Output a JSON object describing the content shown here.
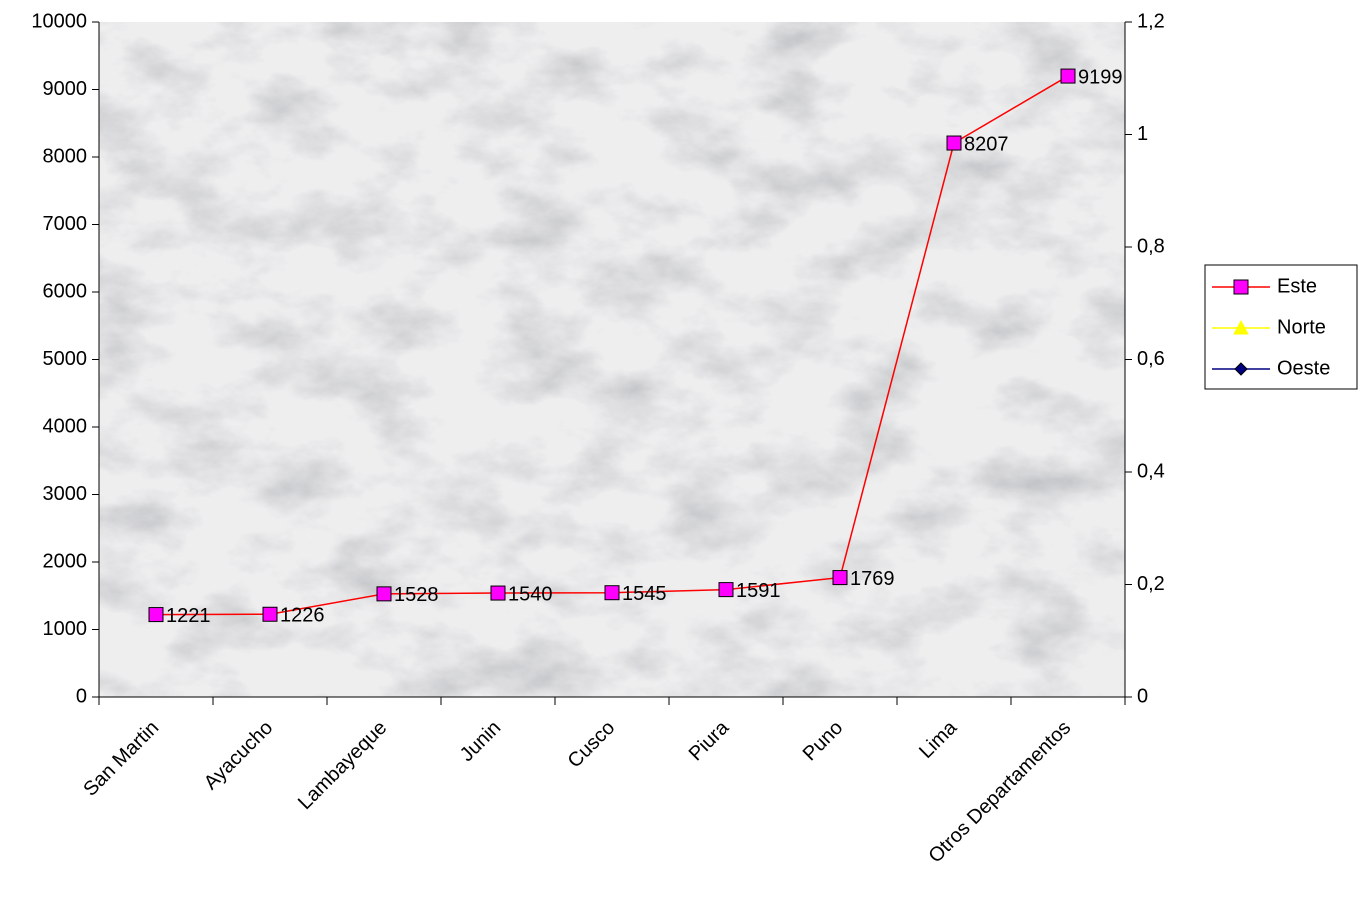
{
  "chart_data": {
    "type": "line",
    "categories": [
      "San Martin",
      "Ayacucho",
      "Lambayeque",
      "Junin",
      "Cusco",
      "Piura",
      "Puno",
      "Lima",
      "Otros Departamentos"
    ],
    "series": [
      {
        "name": "Este",
        "color": "#ff0000",
        "marker_color": "#ff00ff",
        "marker": "square",
        "data_labels": true,
        "values": [
          1221,
          1226,
          1528,
          1540,
          1545,
          1591,
          1769,
          8207,
          9199
        ]
      },
      {
        "name": "Norte",
        "color": "#ffff00",
        "marker_color": "#ffff00",
        "marker": "triangle",
        "axis": "y2",
        "values": [
          null,
          null,
          null,
          null,
          null,
          null,
          null,
          null,
          null
        ]
      },
      {
        "name": "Oeste",
        "color": "#000080",
        "marker_color": "#000080",
        "marker": "diamond",
        "axis": "y2",
        "values": [
          null,
          null,
          null,
          null,
          null,
          null,
          null,
          null,
          null
        ]
      }
    ],
    "ylim": [
      0,
      10000
    ],
    "yticks": [
      0,
      1000,
      2000,
      3000,
      4000,
      5000,
      6000,
      7000,
      8000,
      9000,
      10000
    ],
    "y2lim": [
      0,
      1.2
    ],
    "y2ticks": [
      0,
      {
        "value": 0.2,
        "label": "0,2"
      },
      {
        "value": 0.4,
        "label": "0,4"
      },
      {
        "value": 0.6,
        "label": "0,6"
      },
      {
        "value": 0.8,
        "label": "0,8"
      },
      1,
      {
        "value": 1.2,
        "label": "1,2"
      }
    ],
    "legend": "right"
  }
}
